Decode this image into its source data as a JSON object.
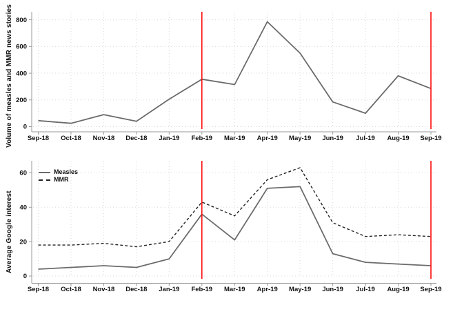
{
  "colors": {
    "background": "#ffffff",
    "series_gray": "#6b6b6b",
    "series_black": "#222222",
    "event_line": "#fe0d0d",
    "grid": "#d9d9d9",
    "axis": "#9a9a9a",
    "tick_label": "#111111"
  },
  "chart_data": [
    {
      "type": "line",
      "name": "news-volume-chart",
      "title": "",
      "xlabel": "",
      "ylabel": "Volume of measles and MMR news stories",
      "categories": [
        "Sep-18",
        "Oct-18",
        "Nov-18",
        "Dec-18",
        "Jan-19",
        "Feb-19",
        "Mar-19",
        "Apr-19",
        "May-19",
        "Jun-19",
        "Jul-19",
        "Aug-19",
        "Sep-19"
      ],
      "series": [
        {
          "name": "News stories",
          "dash": "solid",
          "color": "#6b6b6b",
          "width": 1.8,
          "values": [
            45,
            25,
            90,
            40,
            205,
            355,
            315,
            785,
            550,
            185,
            100,
            380,
            285
          ]
        }
      ],
      "yticks": [
        0,
        200,
        400,
        600,
        800
      ],
      "ylim": [
        0,
        860
      ],
      "grid": "dotted",
      "legend": null,
      "vlines": [
        {
          "x": "Feb-19",
          "color": "#fe0d0d"
        },
        {
          "x": "Sep-19",
          "color": "#fe0d0d"
        }
      ]
    },
    {
      "type": "line",
      "name": "google-interest-chart",
      "title": "",
      "xlabel": "",
      "ylabel": "Average Google interest",
      "categories": [
        "Sep-18",
        "Oct-18",
        "Nov-18",
        "Dec-18",
        "Jan-19",
        "Feb-19",
        "Mar-19",
        "Apr-19",
        "May-19",
        "Jun-19",
        "Jul-19",
        "Aug-19",
        "Sep-19"
      ],
      "series": [
        {
          "name": "Measles",
          "dash": "solid",
          "color": "#6b6b6b",
          "width": 1.8,
          "values": [
            4,
            5,
            6,
            5,
            10,
            36,
            21,
            51,
            52,
            13,
            8,
            7,
            6
          ]
        },
        {
          "name": "MMR",
          "dash": "dashed",
          "color": "#222222",
          "width": 1.4,
          "values": [
            18,
            18,
            19,
            17,
            20,
            43,
            35,
            56,
            63,
            31,
            23,
            24,
            23
          ]
        }
      ],
      "yticks": [
        0,
        20,
        40,
        60
      ],
      "ylim": [
        0,
        67
      ],
      "grid": "dotted",
      "legend": {
        "position": "top-left",
        "entries": [
          "Measles",
          "MMR"
        ]
      },
      "vlines": [
        {
          "x": "Feb-19",
          "color": "#fe0d0d"
        },
        {
          "x": "Sep-19",
          "color": "#fe0d0d"
        }
      ]
    }
  ]
}
